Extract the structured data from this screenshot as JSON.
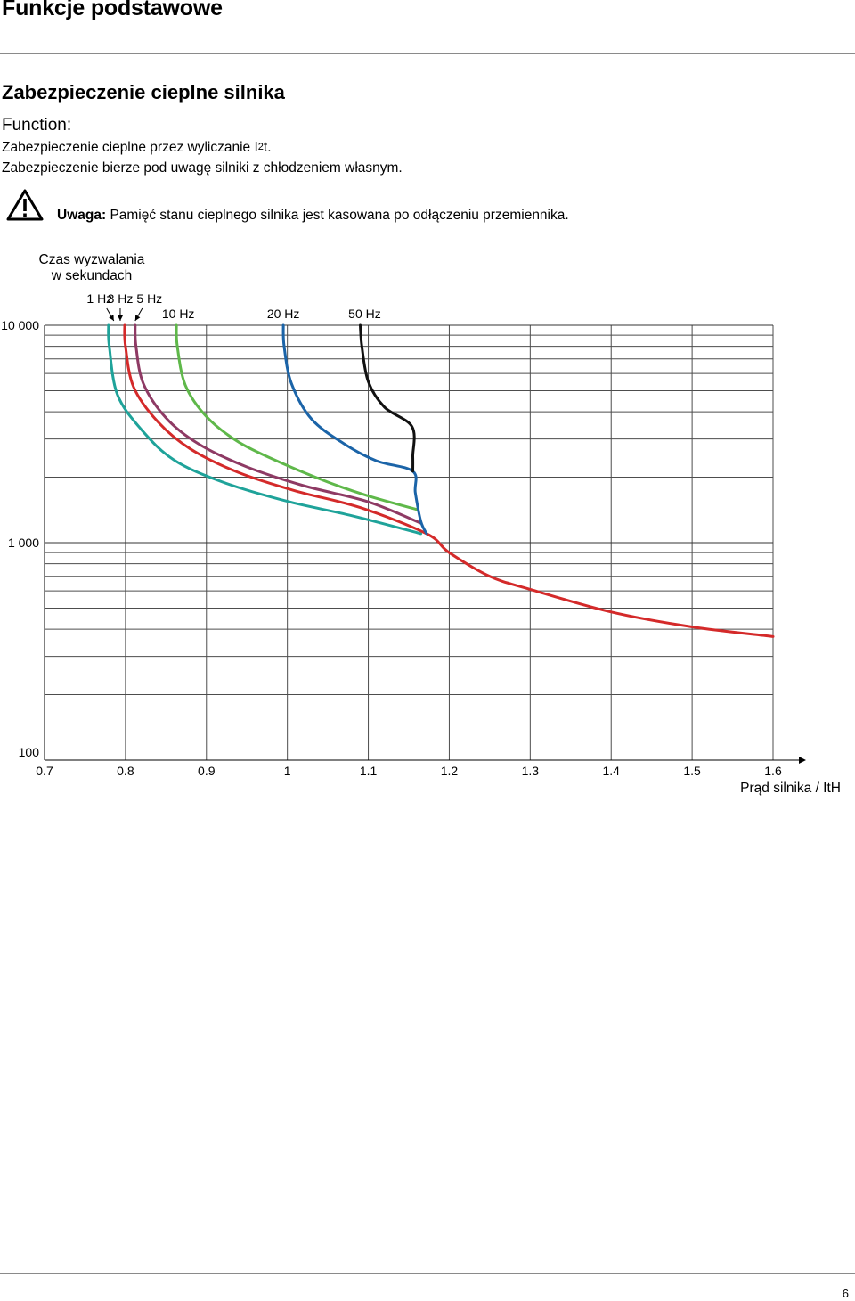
{
  "header": {
    "title": "Funkcje podstawowe"
  },
  "section": {
    "title": "Zabezpieczenie cieplne silnika",
    "function_label": "Function:",
    "line1_prefix": "Zabezpieczenie cieplne przez wyliczanie I",
    "line1_sup": "2",
    "line1_suffix": "t.",
    "line2": "Zabezpieczenie bierze pod uwagę silniki z chłodzeniem własnym.",
    "note_label": "Uwaga:",
    "note_text": "Pamięć stanu cieplnego silnika jest kasowana po odłączeniu przemiennika.",
    "warning_icon": "warning-triangle-icon"
  },
  "chart_data": {
    "type": "line",
    "title": "",
    "ylabel_line1": "Czas wyzwalania",
    "ylabel_line2": "w sekundach",
    "xlabel": "Prąd silnika / ItH",
    "y_scale": "log",
    "ylim": [
      100,
      10000
    ],
    "xlim": [
      0.7,
      1.6
    ],
    "y_tick_labels": [
      "10 000",
      "1 000",
      "100"
    ],
    "y_tick_values": [
      10000,
      1000,
      100
    ],
    "x_ticks": [
      "0.7",
      "0.8",
      "0.9",
      "1",
      "1.1",
      "1.2",
      "1.3",
      "1.4",
      "1.5",
      "1.6"
    ],
    "x_tick_values": [
      0.7,
      0.8,
      0.9,
      1.0,
      1.1,
      1.2,
      1.3,
      1.4,
      1.5,
      1.6
    ],
    "grid": true,
    "series": [
      {
        "name": "1 Hz",
        "color": "#1fa39a",
        "label_text": "1 Hz",
        "points": [
          [
            0.779,
            10000
          ],
          [
            0.78,
            8000
          ],
          [
            0.79,
            4800
          ],
          [
            0.82,
            3300
          ],
          [
            0.86,
            2400
          ],
          [
            0.92,
            1900
          ],
          [
            1.0,
            1550
          ],
          [
            1.08,
            1330
          ],
          [
            1.165,
            1100
          ]
        ]
      },
      {
        "name": "3 Hz",
        "color": "#d42a2a",
        "label_text": "3 Hz",
        "points": [
          [
            0.799,
            10000
          ],
          [
            0.8,
            8000
          ],
          [
            0.81,
            5200
          ],
          [
            0.84,
            3600
          ],
          [
            0.88,
            2700
          ],
          [
            0.94,
            2100
          ],
          [
            1.01,
            1730
          ],
          [
            1.09,
            1450
          ],
          [
            1.172,
            1100
          ],
          [
            1.2,
            900
          ],
          [
            1.25,
            700
          ],
          [
            1.3,
            610
          ],
          [
            1.4,
            480
          ],
          [
            1.5,
            410
          ],
          [
            1.6,
            370
          ]
        ]
      },
      {
        "name": "5 Hz",
        "color": "#8e3a64",
        "label_text": "5 Hz",
        "points": [
          [
            0.812,
            10000
          ],
          [
            0.813,
            8000
          ],
          [
            0.822,
            5400
          ],
          [
            0.85,
            3750
          ],
          [
            0.89,
            2850
          ],
          [
            0.95,
            2230
          ],
          [
            1.02,
            1830
          ],
          [
            1.1,
            1540
          ],
          [
            1.165,
            1230
          ]
        ]
      },
      {
        "name": "10 Hz",
        "color": "#5fb84a",
        "label_text": "10 Hz",
        "points": [
          [
            0.863,
            10000
          ],
          [
            0.864,
            8000
          ],
          [
            0.874,
            5300
          ],
          [
            0.9,
            3800
          ],
          [
            0.94,
            2900
          ],
          [
            0.99,
            2350
          ],
          [
            1.05,
            1900
          ],
          [
            1.1,
            1640
          ],
          [
            1.16,
            1420
          ]
        ]
      },
      {
        "name": "20 Hz",
        "color": "#1b64a8",
        "label_text": "20 Hz",
        "points": [
          [
            0.995,
            10000
          ],
          [
            0.996,
            8000
          ],
          [
            1.005,
            5400
          ],
          [
            1.03,
            3700
          ],
          [
            1.07,
            2850
          ],
          [
            1.11,
            2380
          ],
          [
            1.155,
            2130
          ],
          [
            1.158,
            1700
          ],
          [
            1.165,
            1250
          ],
          [
            1.172,
            1100
          ]
        ]
      },
      {
        "name": "50 Hz",
        "color": "#111111",
        "label_text": "50 Hz",
        "points": [
          [
            1.09,
            10000
          ],
          [
            1.092,
            8000
          ],
          [
            1.1,
            5500
          ],
          [
            1.12,
            4200
          ],
          [
            1.154,
            3420
          ],
          [
            1.155,
            2500
          ],
          [
            1.155,
            2130
          ]
        ]
      }
    ]
  },
  "footer": {
    "page_number": "6"
  }
}
